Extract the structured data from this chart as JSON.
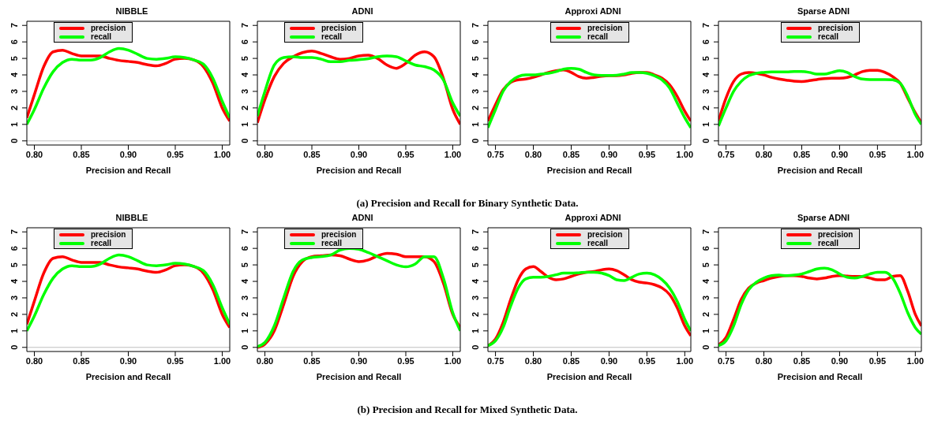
{
  "chart_data": [
    {
      "type": "line",
      "title": "NIBBLE",
      "xlabel": "Precision and Recall",
      "legend": "top left",
      "annotations": [
        "(a) Precision and Recall for Binary Synthetic Data."
      ],
      "xlim": [
        0.792,
        1.008
      ],
      "xticks": [
        {
          "value": 0.8,
          "label": "0.80"
        },
        {
          "value": 0.85,
          "label": "0.85"
        },
        {
          "value": 0.9,
          "label": "0.90"
        },
        {
          "value": 0.95,
          "label": "0.95"
        },
        {
          "value": 1.0,
          "label": "1.00"
        }
      ],
      "ylim": [
        -0.25,
        7.25
      ],
      "yticks": [
        0,
        1,
        2,
        3,
        4,
        5,
        6,
        7
      ],
      "ref_lines": [
        {
          "axis": "y",
          "value": 0,
          "color": "#bebebe"
        }
      ],
      "x": [
        0.792,
        0.8,
        0.81,
        0.82,
        0.83,
        0.84,
        0.85,
        0.86,
        0.87,
        0.88,
        0.89,
        0.9,
        0.91,
        0.92,
        0.93,
        0.94,
        0.95,
        0.96,
        0.97,
        0.98,
        0.99,
        1.0,
        1.008
      ],
      "series": [
        {
          "name": "precision",
          "color": "#ff0000",
          "values": [
            1.4,
            2.8,
            4.5,
            5.4,
            5.5,
            5.3,
            5.15,
            5.15,
            5.15,
            5.0,
            4.88,
            4.82,
            4.75,
            4.62,
            4.55,
            4.7,
            4.95,
            5.0,
            4.9,
            4.5,
            3.5,
            2.0,
            1.2
          ]
        },
        {
          "name": "recall",
          "color": "#00ff00",
          "values": [
            1.0,
            1.9,
            3.2,
            4.2,
            4.75,
            4.95,
            4.9,
            4.9,
            5.05,
            5.4,
            5.6,
            5.5,
            5.25,
            5.0,
            4.95,
            5.0,
            5.1,
            5.05,
            4.9,
            4.65,
            3.8,
            2.4,
            1.4
          ]
        }
      ]
    },
    {
      "type": "line",
      "title": "ADNI",
      "xlabel": "Precision and Recall",
      "legend": "top left",
      "xlim": [
        0.792,
        1.008
      ],
      "xticks": [
        {
          "value": 0.8,
          "label": "0.80"
        },
        {
          "value": 0.85,
          "label": "0.85"
        },
        {
          "value": 0.9,
          "label": "0.90"
        },
        {
          "value": 0.95,
          "label": "0.95"
        },
        {
          "value": 1.0,
          "label": "1.00"
        }
      ],
      "ylim": [
        -0.25,
        7.25
      ],
      "yticks": [
        0,
        1,
        2,
        3,
        4,
        5,
        6,
        7
      ],
      "ref_lines": [
        {
          "axis": "y",
          "value": 0,
          "color": "#bebebe"
        }
      ],
      "x": [
        0.792,
        0.8,
        0.81,
        0.82,
        0.83,
        0.84,
        0.85,
        0.86,
        0.87,
        0.88,
        0.89,
        0.9,
        0.91,
        0.92,
        0.93,
        0.94,
        0.95,
        0.96,
        0.97,
        0.98,
        0.99,
        1.0,
        1.008
      ],
      "series": [
        {
          "name": "precision",
          "color": "#ff0000",
          "values": [
            1.1,
            2.5,
            3.9,
            4.7,
            5.1,
            5.35,
            5.45,
            5.3,
            5.1,
            4.95,
            5.0,
            5.15,
            5.2,
            5.0,
            4.6,
            4.4,
            4.7,
            5.2,
            5.4,
            5.1,
            3.8,
            1.9,
            1.0
          ]
        },
        {
          "name": "recall",
          "color": "#00ff00",
          "values": [
            1.5,
            3.0,
            4.6,
            5.05,
            5.1,
            5.05,
            5.05,
            4.95,
            4.8,
            4.8,
            4.88,
            4.92,
            4.98,
            5.1,
            5.15,
            5.1,
            4.85,
            4.6,
            4.5,
            4.3,
            3.7,
            2.3,
            1.5
          ]
        }
      ]
    },
    {
      "type": "line",
      "title": "Approxi ADNI",
      "xlabel": "Precision and Recall",
      "legend": "top",
      "xlim": [
        0.74,
        1.008
      ],
      "xticks": [
        {
          "value": 0.75,
          "label": "0.75"
        },
        {
          "value": 0.8,
          "label": "0.80"
        },
        {
          "value": 0.85,
          "label": "0.85"
        },
        {
          "value": 0.9,
          "label": "0.90"
        },
        {
          "value": 0.95,
          "label": "0.95"
        },
        {
          "value": 1.0,
          "label": "1.00"
        }
      ],
      "ylim": [
        -0.25,
        7.25
      ],
      "yticks": [
        0,
        1,
        2,
        3,
        4,
        5,
        6,
        7
      ],
      "ref_lines": [
        {
          "axis": "y",
          "value": 0,
          "color": "#bebebe"
        }
      ],
      "x": [
        0.74,
        0.75,
        0.76,
        0.77,
        0.78,
        0.79,
        0.8,
        0.81,
        0.82,
        0.83,
        0.84,
        0.85,
        0.86,
        0.87,
        0.88,
        0.89,
        0.9,
        0.91,
        0.92,
        0.93,
        0.94,
        0.95,
        0.96,
        0.97,
        0.98,
        0.99,
        1.0,
        1.008
      ],
      "series": [
        {
          "name": "precision",
          "color": "#ff0000",
          "values": [
            1.2,
            2.2,
            3.1,
            3.55,
            3.7,
            3.75,
            3.85,
            4.0,
            4.15,
            4.25,
            4.3,
            4.15,
            3.9,
            3.8,
            3.85,
            3.92,
            3.95,
            3.95,
            4.0,
            4.1,
            4.15,
            4.15,
            4.0,
            3.8,
            3.4,
            2.7,
            1.8,
            1.2
          ]
        },
        {
          "name": "recall",
          "color": "#00ff00",
          "values": [
            0.8,
            1.9,
            3.0,
            3.6,
            3.9,
            4.0,
            4.0,
            4.05,
            4.1,
            4.2,
            4.35,
            4.4,
            4.35,
            4.15,
            4.0,
            3.97,
            3.97,
            3.98,
            4.05,
            4.15,
            4.15,
            4.1,
            3.95,
            3.7,
            3.2,
            2.3,
            1.4,
            0.8
          ]
        }
      ]
    },
    {
      "type": "line",
      "title": "Sparse ADNI",
      "xlabel": "Precision and Recall",
      "legend": "top",
      "xlim": [
        0.74,
        1.008
      ],
      "xticks": [
        {
          "value": 0.75,
          "label": "0.75"
        },
        {
          "value": 0.8,
          "label": "0.80"
        },
        {
          "value": 0.85,
          "label": "0.85"
        },
        {
          "value": 0.9,
          "label": "0.90"
        },
        {
          "value": 0.95,
          "label": "0.95"
        },
        {
          "value": 1.0,
          "label": "1.00"
        }
      ],
      "ylim": [
        -0.25,
        7.25
      ],
      "yticks": [
        0,
        1,
        2,
        3,
        4,
        5,
        6,
        7
      ],
      "ref_lines": [
        {
          "axis": "y",
          "value": 0,
          "color": "#bebebe"
        }
      ],
      "x": [
        0.74,
        0.75,
        0.76,
        0.77,
        0.78,
        0.79,
        0.8,
        0.81,
        0.82,
        0.83,
        0.84,
        0.85,
        0.86,
        0.87,
        0.88,
        0.89,
        0.9,
        0.91,
        0.92,
        0.93,
        0.94,
        0.95,
        0.96,
        0.97,
        0.98,
        0.99,
        1.0,
        1.008
      ],
      "series": [
        {
          "name": "precision",
          "color": "#ff0000",
          "values": [
            1.2,
            2.6,
            3.6,
            4.05,
            4.15,
            4.1,
            4.0,
            3.85,
            3.75,
            3.68,
            3.62,
            3.6,
            3.65,
            3.72,
            3.78,
            3.8,
            3.8,
            3.85,
            4.0,
            4.2,
            4.28,
            4.28,
            4.15,
            3.9,
            3.5,
            2.6,
            1.7,
            1.1
          ]
        },
        {
          "name": "recall",
          "color": "#00ff00",
          "values": [
            0.9,
            2.0,
            3.0,
            3.6,
            3.95,
            4.1,
            4.15,
            4.18,
            4.18,
            4.18,
            4.2,
            4.2,
            4.15,
            4.05,
            4.05,
            4.15,
            4.25,
            4.15,
            3.9,
            3.75,
            3.72,
            3.72,
            3.72,
            3.7,
            3.5,
            2.7,
            1.6,
            1.0
          ]
        }
      ]
    },
    {
      "type": "line",
      "title": "NIBBLE",
      "xlabel": "Precision and Recall",
      "legend": "top left",
      "annotations": [
        "(b) Precision and Recall for Mixed Synthetic Data."
      ],
      "xlim": [
        0.792,
        1.008
      ],
      "xticks": [
        {
          "value": 0.8,
          "label": "0.80"
        },
        {
          "value": 0.85,
          "label": "0.85"
        },
        {
          "value": 0.9,
          "label": "0.90"
        },
        {
          "value": 0.95,
          "label": "0.95"
        },
        {
          "value": 1.0,
          "label": "1.00"
        }
      ],
      "ylim": [
        -0.25,
        7.25
      ],
      "yticks": [
        0,
        1,
        2,
        3,
        4,
        5,
        6,
        7
      ],
      "ref_lines": [
        {
          "axis": "y",
          "value": 0,
          "color": "#bebebe"
        }
      ],
      "x": [
        0.792,
        0.8,
        0.81,
        0.82,
        0.83,
        0.84,
        0.85,
        0.86,
        0.87,
        0.88,
        0.89,
        0.9,
        0.91,
        0.92,
        0.93,
        0.94,
        0.95,
        0.96,
        0.97,
        0.98,
        0.99,
        1.0,
        1.008
      ],
      "series": [
        {
          "name": "precision",
          "color": "#ff0000",
          "values": [
            1.4,
            2.8,
            4.5,
            5.4,
            5.5,
            5.3,
            5.15,
            5.15,
            5.15,
            5.0,
            4.88,
            4.82,
            4.75,
            4.62,
            4.55,
            4.7,
            4.95,
            5.0,
            4.9,
            4.5,
            3.5,
            2.0,
            1.2
          ]
        },
        {
          "name": "recall",
          "color": "#00ff00",
          "values": [
            1.0,
            1.9,
            3.2,
            4.2,
            4.75,
            4.95,
            4.9,
            4.9,
            5.05,
            5.4,
            5.6,
            5.5,
            5.25,
            5.0,
            4.95,
            5.0,
            5.1,
            5.05,
            4.9,
            4.65,
            3.8,
            2.4,
            1.4
          ]
        }
      ]
    },
    {
      "type": "line",
      "title": "ADNI",
      "xlabel": "Precision and Recall",
      "legend": "top left",
      "xlim": [
        0.792,
        1.008
      ],
      "xticks": [
        {
          "value": 0.8,
          "label": "0.80"
        },
        {
          "value": 0.85,
          "label": "0.85"
        },
        {
          "value": 0.9,
          "label": "0.90"
        },
        {
          "value": 0.95,
          "label": "0.95"
        },
        {
          "value": 1.0,
          "label": "1.00"
        }
      ],
      "ylim": [
        -0.25,
        7.25
      ],
      "yticks": [
        0,
        1,
        2,
        3,
        4,
        5,
        6,
        7
      ],
      "ref_lines": [
        {
          "axis": "y",
          "value": 0,
          "color": "#bebebe"
        }
      ],
      "x": [
        0.792,
        0.8,
        0.81,
        0.82,
        0.83,
        0.84,
        0.85,
        0.86,
        0.87,
        0.88,
        0.89,
        0.9,
        0.91,
        0.92,
        0.93,
        0.94,
        0.95,
        0.96,
        0.97,
        0.98,
        0.99,
        1.0,
        1.008
      ],
      "series": [
        {
          "name": "precision",
          "color": "#ff0000",
          "values": [
            0.0,
            0.2,
            1.0,
            2.6,
            4.3,
            5.2,
            5.5,
            5.55,
            5.6,
            5.55,
            5.35,
            5.2,
            5.3,
            5.55,
            5.7,
            5.65,
            5.5,
            5.5,
            5.5,
            5.2,
            3.9,
            2.0,
            1.2
          ]
        },
        {
          "name": "recall",
          "color": "#00ff00",
          "values": [
            0.05,
            0.3,
            1.3,
            3.0,
            4.6,
            5.3,
            5.45,
            5.5,
            5.6,
            5.9,
            6.0,
            5.95,
            5.75,
            5.5,
            5.25,
            5.0,
            4.88,
            5.05,
            5.5,
            5.5,
            4.2,
            2.1,
            1.0
          ]
        }
      ]
    },
    {
      "type": "line",
      "title": "Approxi ADNI",
      "xlabel": "Precision and Recall",
      "legend": "top",
      "xlim": [
        0.74,
        1.008
      ],
      "xticks": [
        {
          "value": 0.75,
          "label": "0.75"
        },
        {
          "value": 0.8,
          "label": "0.80"
        },
        {
          "value": 0.85,
          "label": "0.85"
        },
        {
          "value": 0.9,
          "label": "0.90"
        },
        {
          "value": 0.95,
          "label": "0.95"
        },
        {
          "value": 1.0,
          "label": "1.00"
        }
      ],
      "ylim": [
        -0.25,
        7.25
      ],
      "yticks": [
        0,
        1,
        2,
        3,
        4,
        5,
        6,
        7
      ],
      "ref_lines": [
        {
          "axis": "y",
          "value": 0,
          "color": "#bebebe"
        }
      ],
      "x": [
        0.74,
        0.75,
        0.76,
        0.77,
        0.78,
        0.79,
        0.8,
        0.81,
        0.82,
        0.83,
        0.84,
        0.85,
        0.86,
        0.87,
        0.88,
        0.89,
        0.9,
        0.91,
        0.92,
        0.93,
        0.94,
        0.95,
        0.96,
        0.97,
        0.98,
        0.99,
        1.0,
        1.008
      ],
      "series": [
        {
          "name": "precision",
          "color": "#ff0000",
          "values": [
            0.1,
            0.5,
            1.5,
            2.9,
            4.1,
            4.75,
            4.9,
            4.6,
            4.25,
            4.1,
            4.15,
            4.3,
            4.45,
            4.55,
            4.6,
            4.7,
            4.75,
            4.65,
            4.4,
            4.1,
            3.95,
            3.9,
            3.8,
            3.6,
            3.2,
            2.4,
            1.3,
            0.7
          ]
        },
        {
          "name": "recall",
          "color": "#00ff00",
          "values": [
            0.1,
            0.4,
            1.2,
            2.5,
            3.6,
            4.15,
            4.25,
            4.25,
            4.3,
            4.4,
            4.5,
            4.5,
            4.52,
            4.55,
            4.55,
            4.5,
            4.35,
            4.1,
            4.05,
            4.25,
            4.45,
            4.5,
            4.4,
            4.1,
            3.6,
            2.8,
            1.7,
            1.0
          ]
        }
      ]
    },
    {
      "type": "line",
      "title": "Sparse ADNI",
      "xlabel": "Precision and Recall",
      "legend": "top",
      "xlim": [
        0.74,
        1.008
      ],
      "xticks": [
        {
          "value": 0.75,
          "label": "0.75"
        },
        {
          "value": 0.8,
          "label": "0.80"
        },
        {
          "value": 0.85,
          "label": "0.85"
        },
        {
          "value": 0.9,
          "label": "0.90"
        },
        {
          "value": 0.95,
          "label": "0.95"
        },
        {
          "value": 1.0,
          "label": "1.00"
        }
      ],
      "ylim": [
        -0.25,
        7.25
      ],
      "yticks": [
        0,
        1,
        2,
        3,
        4,
        5,
        6,
        7
      ],
      "ref_lines": [
        {
          "axis": "y",
          "value": 0,
          "color": "#bebebe"
        }
      ],
      "x": [
        0.74,
        0.75,
        0.76,
        0.77,
        0.78,
        0.79,
        0.8,
        0.81,
        0.82,
        0.83,
        0.84,
        0.85,
        0.86,
        0.87,
        0.88,
        0.89,
        0.9,
        0.91,
        0.92,
        0.93,
        0.94,
        0.95,
        0.96,
        0.97,
        0.98,
        0.99,
        1.0,
        1.008
      ],
      "series": [
        {
          "name": "precision",
          "color": "#ff0000",
          "values": [
            0.15,
            0.6,
            1.7,
            2.9,
            3.6,
            3.9,
            4.05,
            4.2,
            4.3,
            4.35,
            4.35,
            4.3,
            4.2,
            4.15,
            4.2,
            4.3,
            4.35,
            4.32,
            4.3,
            4.3,
            4.2,
            4.1,
            4.1,
            4.3,
            4.35,
            3.4,
            2.0,
            1.3
          ]
        },
        {
          "name": "recall",
          "color": "#00ff00",
          "values": [
            0.1,
            0.4,
            1.3,
            2.6,
            3.5,
            3.95,
            4.2,
            4.35,
            4.38,
            4.35,
            4.38,
            4.45,
            4.6,
            4.75,
            4.8,
            4.7,
            4.45,
            4.25,
            4.2,
            4.3,
            4.45,
            4.55,
            4.55,
            4.2,
            3.3,
            2.1,
            1.2,
            0.8
          ]
        }
      ]
    }
  ]
}
